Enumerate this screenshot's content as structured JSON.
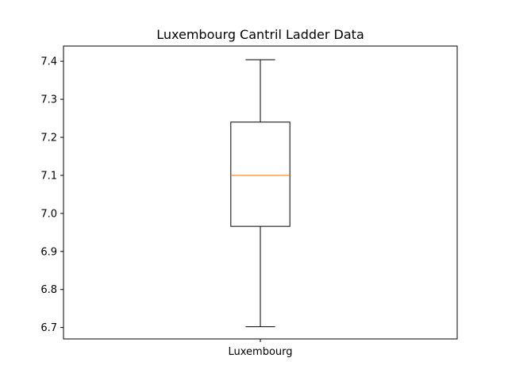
{
  "chart_data": {
    "type": "box",
    "title": "Luxembourg Cantril Ladder Data",
    "xlabel": "",
    "ylabel": "",
    "categories": [
      "Luxembourg"
    ],
    "boxes": [
      {
        "name": "Luxembourg",
        "whisker_low": 6.702,
        "q1": 6.966,
        "median": 7.1,
        "q3": 7.24,
        "whisker_high": 7.404
      }
    ],
    "ylim": [
      6.67,
      7.44
    ],
    "yticks": [
      6.7,
      6.8,
      6.9,
      7.0,
      7.1,
      7.2,
      7.3,
      7.4
    ],
    "ytick_labels": [
      "6.7",
      "6.8",
      "6.9",
      "7.0",
      "7.1",
      "7.2",
      "7.3",
      "7.4"
    ],
    "grid": false,
    "colors": {
      "box": "#000000",
      "median": "#ff7f0e"
    }
  }
}
